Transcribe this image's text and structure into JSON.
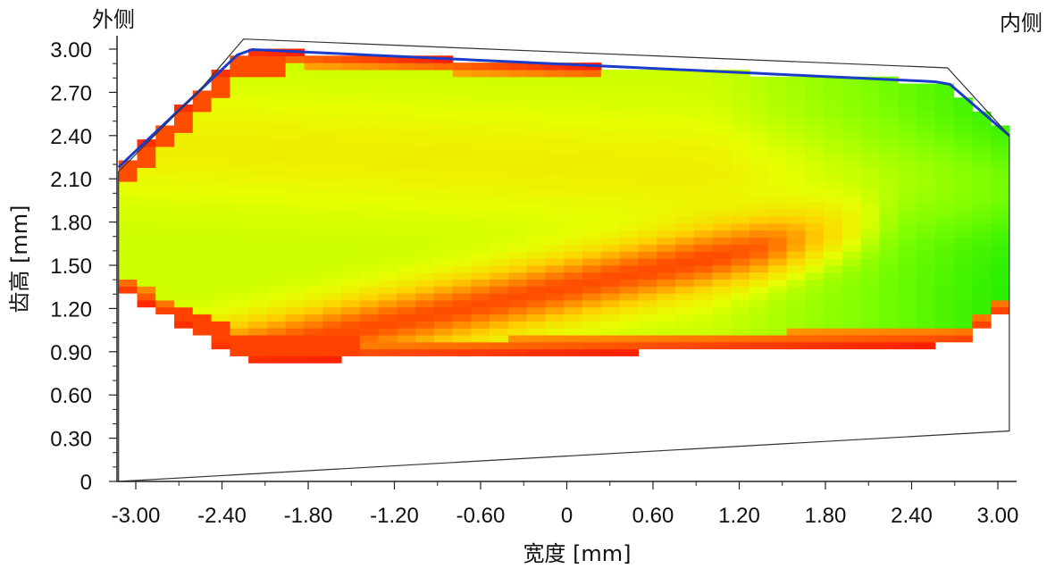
{
  "chart_data": {
    "type": "heatmap",
    "title": "",
    "xlabel": "宽度 [mm]",
    "ylabel": "齿高 [mm]",
    "corner_labels": {
      "left": "外侧",
      "right": "内侧"
    },
    "xlim": [
      -3.2,
      3.1
    ],
    "ylim": [
      0,
      3.1
    ],
    "x_ticks": [
      {
        "value": -3.0,
        "label": "-3.00"
      },
      {
        "value": -2.4,
        "label": "-2.40"
      },
      {
        "value": -1.8,
        "label": "-1.80"
      },
      {
        "value": -1.2,
        "label": "-1.20"
      },
      {
        "value": -0.6,
        "label": "-0.60"
      },
      {
        "value": 0.0,
        "label": "0"
      },
      {
        "value": 0.6,
        "label": "0.60"
      },
      {
        "value": 1.2,
        "label": "1.20"
      },
      {
        "value": 1.8,
        "label": "1.80"
      },
      {
        "value": 2.4,
        "label": "2.40"
      },
      {
        "value": 3.0,
        "label": "3.00"
      }
    ],
    "y_ticks": [
      {
        "value": 0.0,
        "label": "0"
      },
      {
        "value": 0.3,
        "label": "0.30"
      },
      {
        "value": 0.6,
        "label": "0.60"
      },
      {
        "value": 0.9,
        "label": "0.90"
      },
      {
        "value": 1.2,
        "label": "1.20"
      },
      {
        "value": 1.5,
        "label": "1.50"
      },
      {
        "value": 1.8,
        "label": "1.80"
      },
      {
        "value": 2.1,
        "label": "2.10"
      },
      {
        "value": 2.4,
        "label": "2.40"
      },
      {
        "value": 2.7,
        "label": "2.70"
      },
      {
        "value": 3.0,
        "label": "3.00"
      }
    ],
    "tooth_outline": [
      [
        -3.12,
        0.0
      ],
      [
        -3.12,
        2.15
      ],
      [
        -2.55,
        2.72
      ],
      [
        -2.25,
        3.07
      ],
      [
        2.65,
        2.87
      ],
      [
        3.08,
        2.4
      ],
      [
        3.08,
        0.35
      ],
      [
        -3.12,
        0.0
      ]
    ],
    "contact_pattern_envelope": {
      "x_range": [
        -3.12,
        3.08
      ],
      "top_left": 2.18,
      "top_left_x": -3.12,
      "top_peak": 3.0,
      "top_peak_x": -2.25,
      "top_mid": 2.77,
      "top_mid_x": 2.65,
      "top_right": 2.4,
      "bottom_left": 1.34,
      "bottom_left_x": -3.12,
      "bottom_min": 0.83,
      "bottom_min_x": -2.25,
      "bottom_right_mid": 0.95,
      "bottom_right_mid_x": 2.75,
      "bottom_right": 1.2
    },
    "color_scale": [
      "#00e600",
      "#7fff00",
      "#e6ff00",
      "#ffd000",
      "#ff7f00",
      "#ff1a00"
    ],
    "edge_color": "#1a3cc8"
  }
}
